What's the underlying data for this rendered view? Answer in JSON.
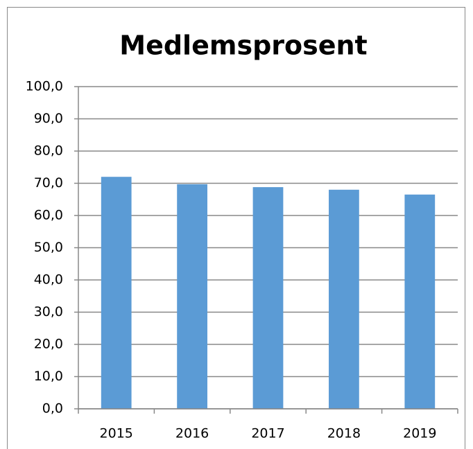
{
  "chart_data": {
    "type": "bar",
    "title": "Medlemsprosent",
    "categories": [
      "2015",
      "2016",
      "2017",
      "2018",
      "2019"
    ],
    "values": [
      72.0,
      69.7,
      68.8,
      68.0,
      66.5
    ],
    "color": "#5b9bd5",
    "ylim": [
      0,
      100
    ],
    "yticks": [
      {
        "value": 0,
        "label": "0,0"
      },
      {
        "value": 10,
        "label": "10,0"
      },
      {
        "value": 20,
        "label": "20,0"
      },
      {
        "value": 30,
        "label": "30,0"
      },
      {
        "value": 40,
        "label": "40,0"
      },
      {
        "value": 50,
        "label": "50,0"
      },
      {
        "value": 60,
        "label": "60,0"
      },
      {
        "value": 70,
        "label": "70,0"
      },
      {
        "value": 80,
        "label": "80,0"
      },
      {
        "value": 90,
        "label": "90,0"
      },
      {
        "value": 100,
        "label": "100,0"
      }
    ],
    "grid": true
  }
}
